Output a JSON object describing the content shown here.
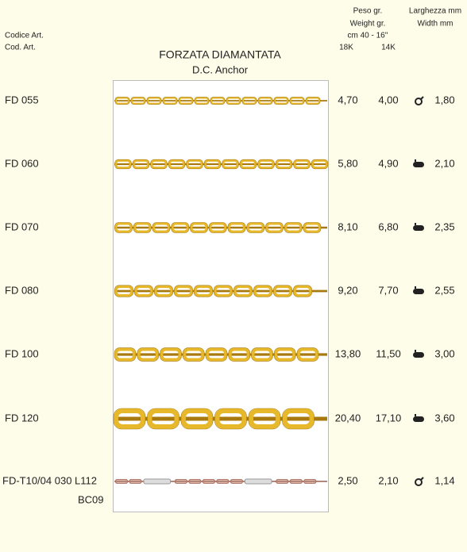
{
  "header": {
    "code_label_it": "Codice Art.",
    "code_label_en": "Cod. Art.",
    "title": "FORZATA DIAMANTATA",
    "subtitle": "D.C. Anchor",
    "weight_label_it": "Peso gr.",
    "weight_label_en": "Weight gr.",
    "length": "cm 40 - 16''",
    "col_18k": "18K",
    "col_14k": "14K",
    "width_label_it": "Larghezza mm",
    "width_label_en": "Width mm"
  },
  "rows": [
    {
      "code": "FD 055",
      "weight_18k": "4,70",
      "weight_14k": "4,00",
      "width": "1,80"
    },
    {
      "code": "FD 060",
      "weight_18k": "5,80",
      "weight_14k": "4,90",
      "width": "2,10"
    },
    {
      "code": "FD 070",
      "weight_18k": "8,10",
      "weight_14k": "6,80",
      "width": "2,35"
    },
    {
      "code": "FD 080",
      "weight_18k": "9,20",
      "weight_14k": "7,70",
      "width": "2,55"
    },
    {
      "code": "FD 100",
      "weight_18k": "13,80",
      "weight_14k": "11,50",
      "width": "3,00"
    },
    {
      "code": "FD 120",
      "weight_18k": "20,40",
      "weight_14k": "17,10",
      "width": "3,60"
    },
    {
      "code": "FD-T10/04 030 L112",
      "code2": "BC09",
      "weight_18k": "2,50",
      "weight_14k": "2,10",
      "width": "1,14"
    }
  ]
}
